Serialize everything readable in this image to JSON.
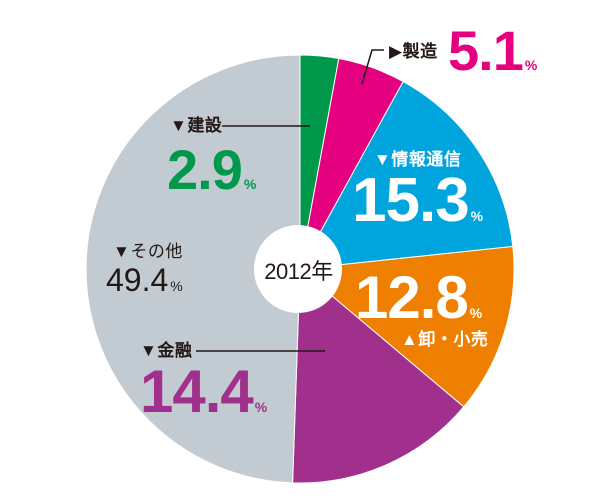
{
  "chart_data": {
    "type": "pie",
    "title": "2012年",
    "center_label": "2012年",
    "start_angle": "top, clockwise",
    "categories": [
      "建設",
      "製造",
      "情報通信",
      "卸・小売",
      "金融",
      "その他"
    ],
    "values": [
      2.9,
      5.1,
      15.3,
      12.8,
      14.4,
      49.4
    ],
    "unit": "%",
    "colors": [
      "#00994b",
      "#e4007f",
      "#00a5dd",
      "#ee7f00",
      "#a1308c",
      "#c3cbd2"
    ],
    "legend": "none (direct labels)"
  },
  "labels": {
    "kensetsu": {
      "name": "▼建設",
      "value": "2.9",
      "pct": "%"
    },
    "seizou": {
      "name": "▶製造",
      "value": "5.1",
      "pct": "%"
    },
    "jouhou": {
      "name": "▼情報通信",
      "value": "15.3",
      "pct": "%"
    },
    "oroshi": {
      "name": "▲卸・小売",
      "value": "12.8",
      "pct": "%"
    },
    "kinyu": {
      "name": "▼金融",
      "value": "14.4",
      "pct": "%"
    },
    "sonota": {
      "name": "▼その他",
      "value": "49.4",
      "pct": "%"
    }
  },
  "center": {
    "year": "2012年"
  }
}
